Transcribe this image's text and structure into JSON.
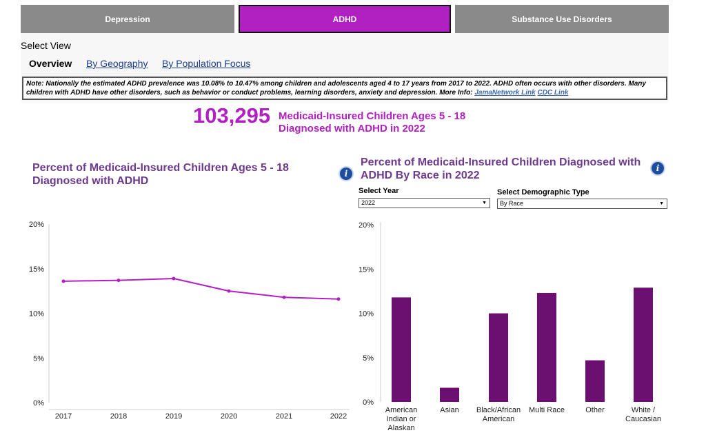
{
  "tabs": [
    "Depression",
    "ADHD",
    "Substance Use Disorders"
  ],
  "view": {
    "label": "Select View",
    "tabs": [
      "Overview",
      "By Geography",
      "By Population Focus"
    ]
  },
  "note": {
    "text": "Note: Nationally the estimated ADHD prevalence was 10.08% to 10.47% among children and adolescents aged 4 to 17 years from 2017 to 2022. ADHD often occurs with other disorders. Many children with ADHD have other disorders, such as behavior or conduct problems, learning disorders, anxiety and depression.",
    "more_info": "More Info:",
    "link1": "JamaNetwork Link",
    "link2": "CDC Link"
  },
  "headline": {
    "number": "103,295",
    "label": "Medicaid-Insured Children Ages 5 - 18 Diagnosed with ADHD in 2022"
  },
  "filters": {
    "year_label": "Select Year",
    "year_value": "2022",
    "demo_label": "Select Demographic Type",
    "demo_value": "By Race"
  },
  "colors": {
    "accent": "#b120c0",
    "bar": "#6b0f70",
    "title": "#6d3a8e"
  },
  "chart_data": [
    {
      "type": "line",
      "title": "Percent of Medicaid-Insured Children Ages 5 - 18 Diagnosed with ADHD",
      "x": [
        "2017",
        "2018",
        "2019",
        "2020",
        "2021",
        "2022"
      ],
      "values": [
        13.6,
        13.7,
        13.9,
        12.5,
        11.8,
        11.6
      ],
      "yticks": [
        "0%",
        "5%",
        "10%",
        "15%",
        "20%"
      ],
      "ylim": [
        0,
        20
      ]
    },
    {
      "type": "bar",
      "title": "Percent of Medicaid-Insured Children Diagnosed with ADHD By Race in 2022",
      "categories": [
        "American Indian or Alaskan",
        "Asian",
        "Black/African American",
        "Multi Race",
        "Other",
        "White / Caucasian"
      ],
      "values": [
        11.8,
        1.6,
        10.0,
        12.3,
        4.7,
        12.9
      ],
      "yticks": [
        "0%",
        "5%",
        "10%",
        "15%",
        "20%"
      ],
      "ylim": [
        0,
        20
      ]
    }
  ]
}
